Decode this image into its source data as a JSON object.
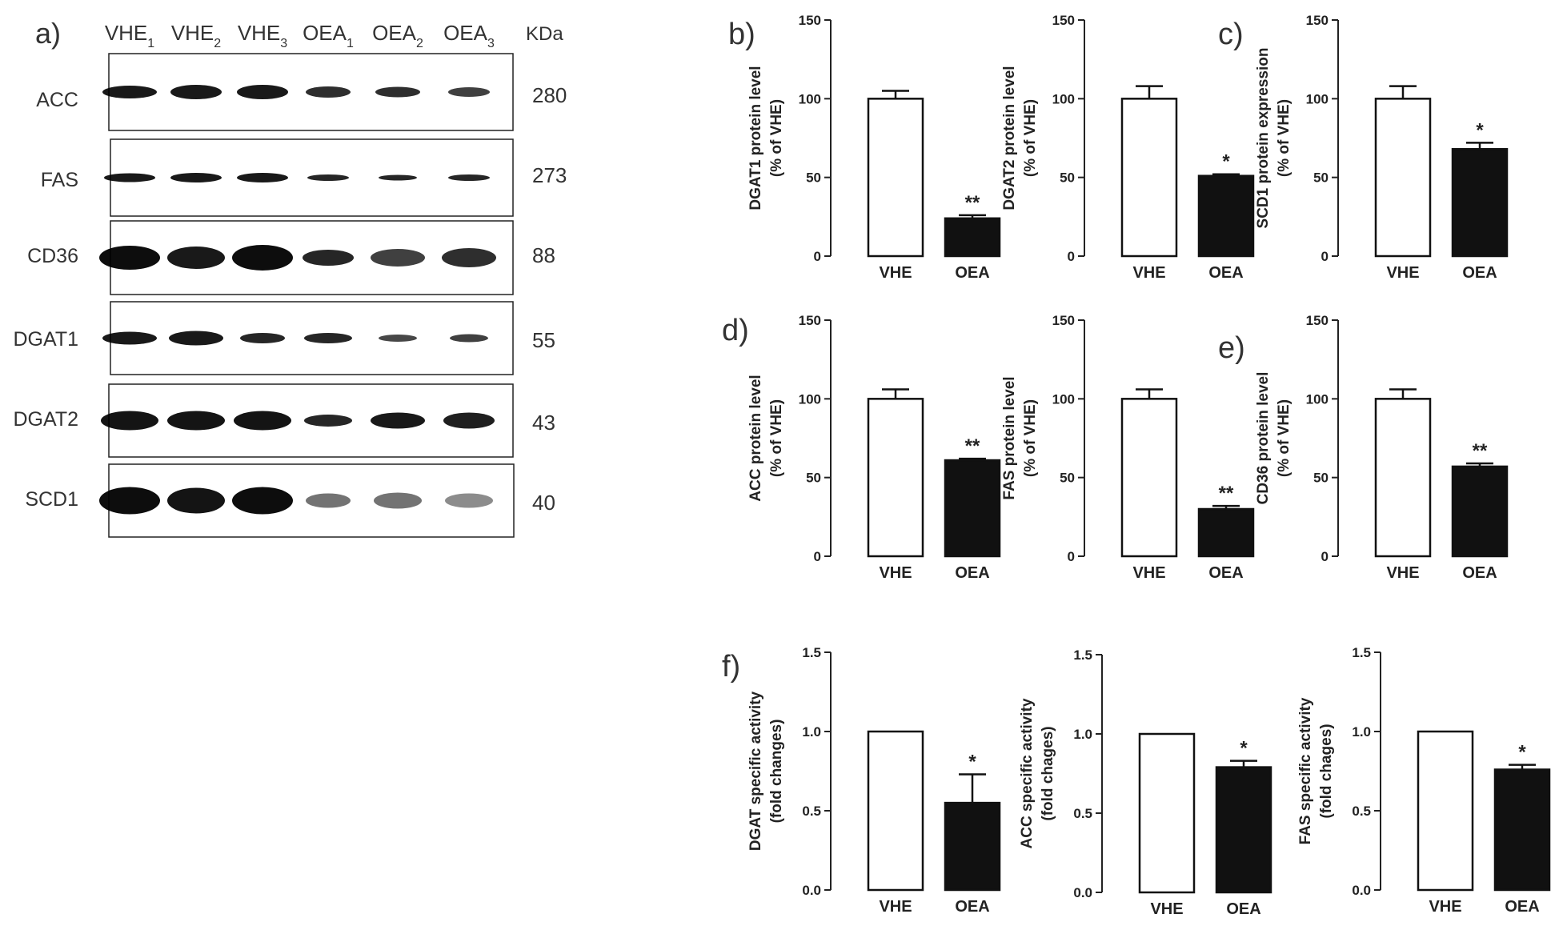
{
  "figure": {
    "western_blot": {
      "panel_label": "a)",
      "lane_labels": [
        {
          "base": "VHE",
          "sub": "1"
        },
        {
          "base": "VHE",
          "sub": "2"
        },
        {
          "base": "VHE",
          "sub": "3"
        },
        {
          "base": "OEA",
          "sub": "1"
        },
        {
          "base": "OEA",
          "sub": "2"
        },
        {
          "base": "OEA",
          "sub": "3"
        }
      ],
      "kda_header": "KDa",
      "rows": [
        {
          "protein": "ACC",
          "kda": "280"
        },
        {
          "protein": "FAS",
          "kda": "273"
        },
        {
          "protein": "CD36",
          "kda": "88"
        },
        {
          "protein": "DGAT1",
          "kda": "55"
        },
        {
          "protein": "DGAT2",
          "kda": "43"
        },
        {
          "protein": "SCD1",
          "kda": "40"
        }
      ]
    }
  },
  "chart_data": [
    {
      "type": "bar",
      "panel_label": "b)",
      "categories": [
        "VHE",
        "OEA"
      ],
      "values": [
        100,
        24
      ],
      "errors": [
        5,
        2
      ],
      "significance": [
        "",
        "**"
      ],
      "ylabel": [
        "DGAT1 protein level",
        "(% of VHE)"
      ],
      "ylim": [
        0,
        150
      ],
      "yticks": [
        "0",
        "50",
        "100",
        "150"
      ],
      "bar_colors": [
        "#ffffff",
        "#111111"
      ]
    },
    {
      "type": "bar",
      "panel_label": "",
      "categories": [
        "VHE",
        "OEA"
      ],
      "values": [
        100,
        51
      ],
      "errors": [
        8,
        1
      ],
      "significance": [
        "",
        "*"
      ],
      "ylabel": [
        "DGAT2 protein level",
        "(% of VHE)"
      ],
      "ylim": [
        0,
        150
      ],
      "yticks": [
        "0",
        "50",
        "100",
        "150"
      ],
      "bar_colors": [
        "#ffffff",
        "#111111"
      ]
    },
    {
      "type": "bar",
      "panel_label": "c)",
      "categories": [
        "VHE",
        "OEA"
      ],
      "values": [
        100,
        68
      ],
      "errors": [
        8,
        4
      ],
      "significance": [
        "",
        "*"
      ],
      "ylabel": [
        "SCD1 protein expression",
        "(% of VHE)"
      ],
      "ylim": [
        0,
        150
      ],
      "yticks": [
        "0",
        "50",
        "100",
        "150"
      ],
      "bar_colors": [
        "#ffffff",
        "#111111"
      ]
    },
    {
      "type": "bar",
      "panel_label": "d)",
      "categories": [
        "VHE",
        "OEA"
      ],
      "values": [
        100,
        61
      ],
      "errors": [
        6,
        1
      ],
      "significance": [
        "",
        "**"
      ],
      "ylabel": [
        "ACC protein level",
        "(% of VHE)"
      ],
      "ylim": [
        0,
        150
      ],
      "yticks": [
        "0",
        "50",
        "100",
        "150"
      ],
      "bar_colors": [
        "#ffffff",
        "#111111"
      ]
    },
    {
      "type": "bar",
      "panel_label": "",
      "categories": [
        "VHE",
        "OEA"
      ],
      "values": [
        100,
        30
      ],
      "errors": [
        6,
        2
      ],
      "significance": [
        "",
        "**"
      ],
      "ylabel": [
        "FAS protein level",
        "(% of VHE)"
      ],
      "ylim": [
        0,
        150
      ],
      "yticks": [
        "0",
        "50",
        "100",
        "150"
      ],
      "bar_colors": [
        "#ffffff",
        "#111111"
      ]
    },
    {
      "type": "bar",
      "panel_label": "e)",
      "categories": [
        "VHE",
        "OEA"
      ],
      "values": [
        100,
        57
      ],
      "errors": [
        6,
        2
      ],
      "significance": [
        "",
        "**"
      ],
      "ylabel": [
        "CD36 protein level",
        "(% of VHE)"
      ],
      "ylim": [
        0,
        150
      ],
      "yticks": [
        "0",
        "50",
        "100",
        "150"
      ],
      "bar_colors": [
        "#ffffff",
        "#111111"
      ]
    },
    {
      "type": "bar",
      "panel_label": "f)",
      "categories": [
        "VHE",
        "OEA"
      ],
      "values": [
        1.0,
        0.55
      ],
      "errors": [
        0,
        0.18
      ],
      "significance": [
        "",
        "*"
      ],
      "ylabel": [
        "DGAT specific activity",
        "(fold changes)"
      ],
      "ylim": [
        0,
        1.5
      ],
      "yticks": [
        "0.0",
        "0.5",
        "1.0",
        "1.5"
      ],
      "bar_colors": [
        "#ffffff",
        "#111111"
      ]
    },
    {
      "type": "bar",
      "panel_label": "",
      "categories": [
        "VHE",
        "OEA"
      ],
      "values": [
        1.0,
        0.79
      ],
      "errors": [
        0,
        0.04
      ],
      "significance": [
        "",
        "*"
      ],
      "ylabel": [
        "ACC specific activity",
        "(fold chages)"
      ],
      "ylim": [
        0,
        1.5
      ],
      "yticks": [
        "0.0",
        "0.5",
        "1.0",
        "1.5"
      ],
      "bar_colors": [
        "#ffffff",
        "#111111"
      ]
    },
    {
      "type": "bar",
      "panel_label": "",
      "categories": [
        "VHE",
        "OEA"
      ],
      "values": [
        1.0,
        0.76
      ],
      "errors": [
        0,
        0.03
      ],
      "significance": [
        "",
        "*"
      ],
      "ylabel": [
        "FAS specific activity",
        "(fold chages)"
      ],
      "ylim": [
        0,
        1.5
      ],
      "yticks": [
        "0.0",
        "0.5",
        "1.0",
        "1.5"
      ],
      "bar_colors": [
        "#ffffff",
        "#111111"
      ]
    }
  ]
}
